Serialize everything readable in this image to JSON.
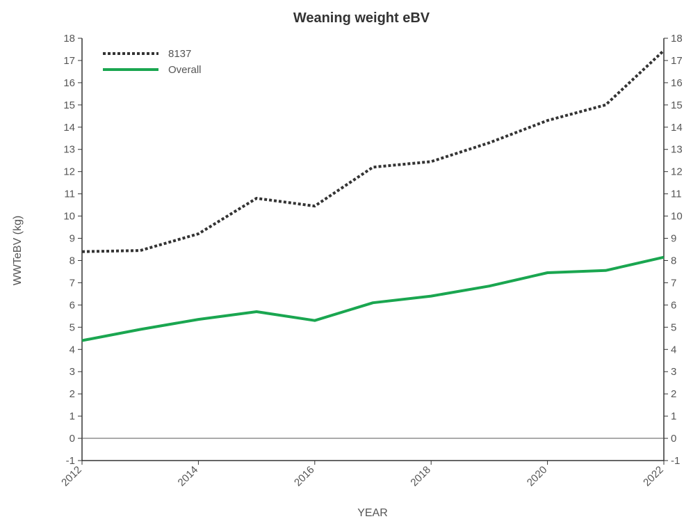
{
  "chart_data": {
    "type": "line",
    "title": "Weaning weight eBV",
    "xlabel": "YEAR",
    "ylabel": "WWTeBV (kg)",
    "xlim": [
      2012,
      2022
    ],
    "ylim": [
      -1,
      18
    ],
    "x_ticks": [
      "2012",
      "2014",
      "2016",
      "2018",
      "2020",
      "2022"
    ],
    "y_ticks": [
      "-1",
      "0",
      "1",
      "2",
      "3",
      "4",
      "5",
      "6",
      "7",
      "8",
      "9",
      "10",
      "11",
      "12",
      "13",
      "14",
      "15",
      "16",
      "17",
      "18"
    ],
    "x": [
      2012,
      2013,
      2014,
      2015,
      2016,
      2017,
      2018,
      2019,
      2020,
      2021,
      2022
    ],
    "series": [
      {
        "name": "8137",
        "color": "#333333",
        "dash": "dotted",
        "values": [
          8.4,
          8.45,
          9.2,
          10.8,
          10.45,
          12.2,
          12.45,
          13.3,
          14.3,
          15.0,
          17.45
        ]
      },
      {
        "name": "Overall",
        "color": "#1aa650",
        "dash": "solid",
        "values": [
          4.4,
          4.9,
          5.35,
          5.7,
          5.3,
          6.1,
          6.4,
          6.85,
          7.45,
          7.55,
          8.15
        ]
      }
    ],
    "reference_line": 0,
    "grid": false,
    "legend_position": "top-left"
  }
}
